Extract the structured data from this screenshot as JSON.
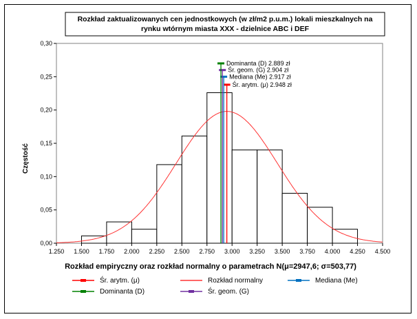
{
  "chart_data": {
    "type": "histogram",
    "title_lines": [
      "Rozkład zaktualizowanych cen jednostkowych  (w zł/m2 p.u.m.) lokali mieszkalnych na",
      "rynku wtórnym miasta XXX - dzielnice ABC i DEF"
    ],
    "xlabel": "Rozkład empiryczny oraz rozkład normalny o parametrach N(μ=2947,6;  σ=503,77)",
    "ylabel": "Częstość",
    "xlim": [
      1250,
      4500
    ],
    "ylim": [
      0,
      0.3
    ],
    "x_tick_labels": [
      "1.250",
      "1.500",
      "1.750",
      "2.000",
      "2.250",
      "2.500",
      "2.750",
      "3.000",
      "3.250",
      "3.500",
      "3.750",
      "4.000",
      "4.250",
      "4.500"
    ],
    "y_tick_labels": [
      "0,00",
      "0,05",
      "0,10",
      "0,15",
      "0,20",
      "0,25",
      "0,30"
    ],
    "bins": [
      {
        "from": 1500,
        "to": 1750,
        "freq": 0.011
      },
      {
        "from": 1750,
        "to": 2000,
        "freq": 0.032
      },
      {
        "from": 2000,
        "to": 2250,
        "freq": 0.021
      },
      {
        "from": 2250,
        "to": 2500,
        "freq": 0.118
      },
      {
        "from": 2500,
        "to": 2750,
        "freq": 0.161
      },
      {
        "from": 2750,
        "to": 3000,
        "freq": 0.226
      },
      {
        "from": 3000,
        "to": 3250,
        "freq": 0.14
      },
      {
        "from": 3250,
        "to": 3500,
        "freq": 0.14
      },
      {
        "from": 3500,
        "to": 3750,
        "freq": 0.075
      },
      {
        "from": 3750,
        "to": 4000,
        "freq": 0.054
      },
      {
        "from": 4000,
        "to": 4250,
        "freq": 0.021
      }
    ],
    "normal": {
      "mu": 2947.6,
      "sigma": 503.77,
      "bin_width": 250,
      "color": "#ff3333"
    },
    "stat_lines": [
      {
        "key": "mean",
        "label": "Śr. arytm. (μ) 2.948 zł",
        "value": 2948,
        "top": 0.238,
        "color": "#ff0000"
      },
      {
        "key": "median",
        "label": "Mediana (Me) 2.917 zł",
        "value": 2917,
        "top": 0.25,
        "color": "#0070c0"
      },
      {
        "key": "geo",
        "label": "Śr. geom. (G) 2.904 zł",
        "value": 2904,
        "top": 0.26,
        "color": "#7030a0"
      },
      {
        "key": "mode",
        "label": "Dominanta (D) 2.889 zł",
        "value": 2889,
        "top": 0.27,
        "color": "#008000"
      }
    ],
    "legend": [
      {
        "label": "Śr. arytm. (μ)",
        "color": "#ff0000",
        "marker": true
      },
      {
        "label": "Rozkład normalny",
        "color": "#ff3333",
        "marker": false
      },
      {
        "label": "Mediana (Me)",
        "color": "#0070c0",
        "marker": true
      },
      {
        "label": "Dominanta (D)",
        "color": "#008000",
        "marker": true
      },
      {
        "label": "Śr. geom. (G)",
        "color": "#7030a0",
        "marker": true
      }
    ]
  }
}
